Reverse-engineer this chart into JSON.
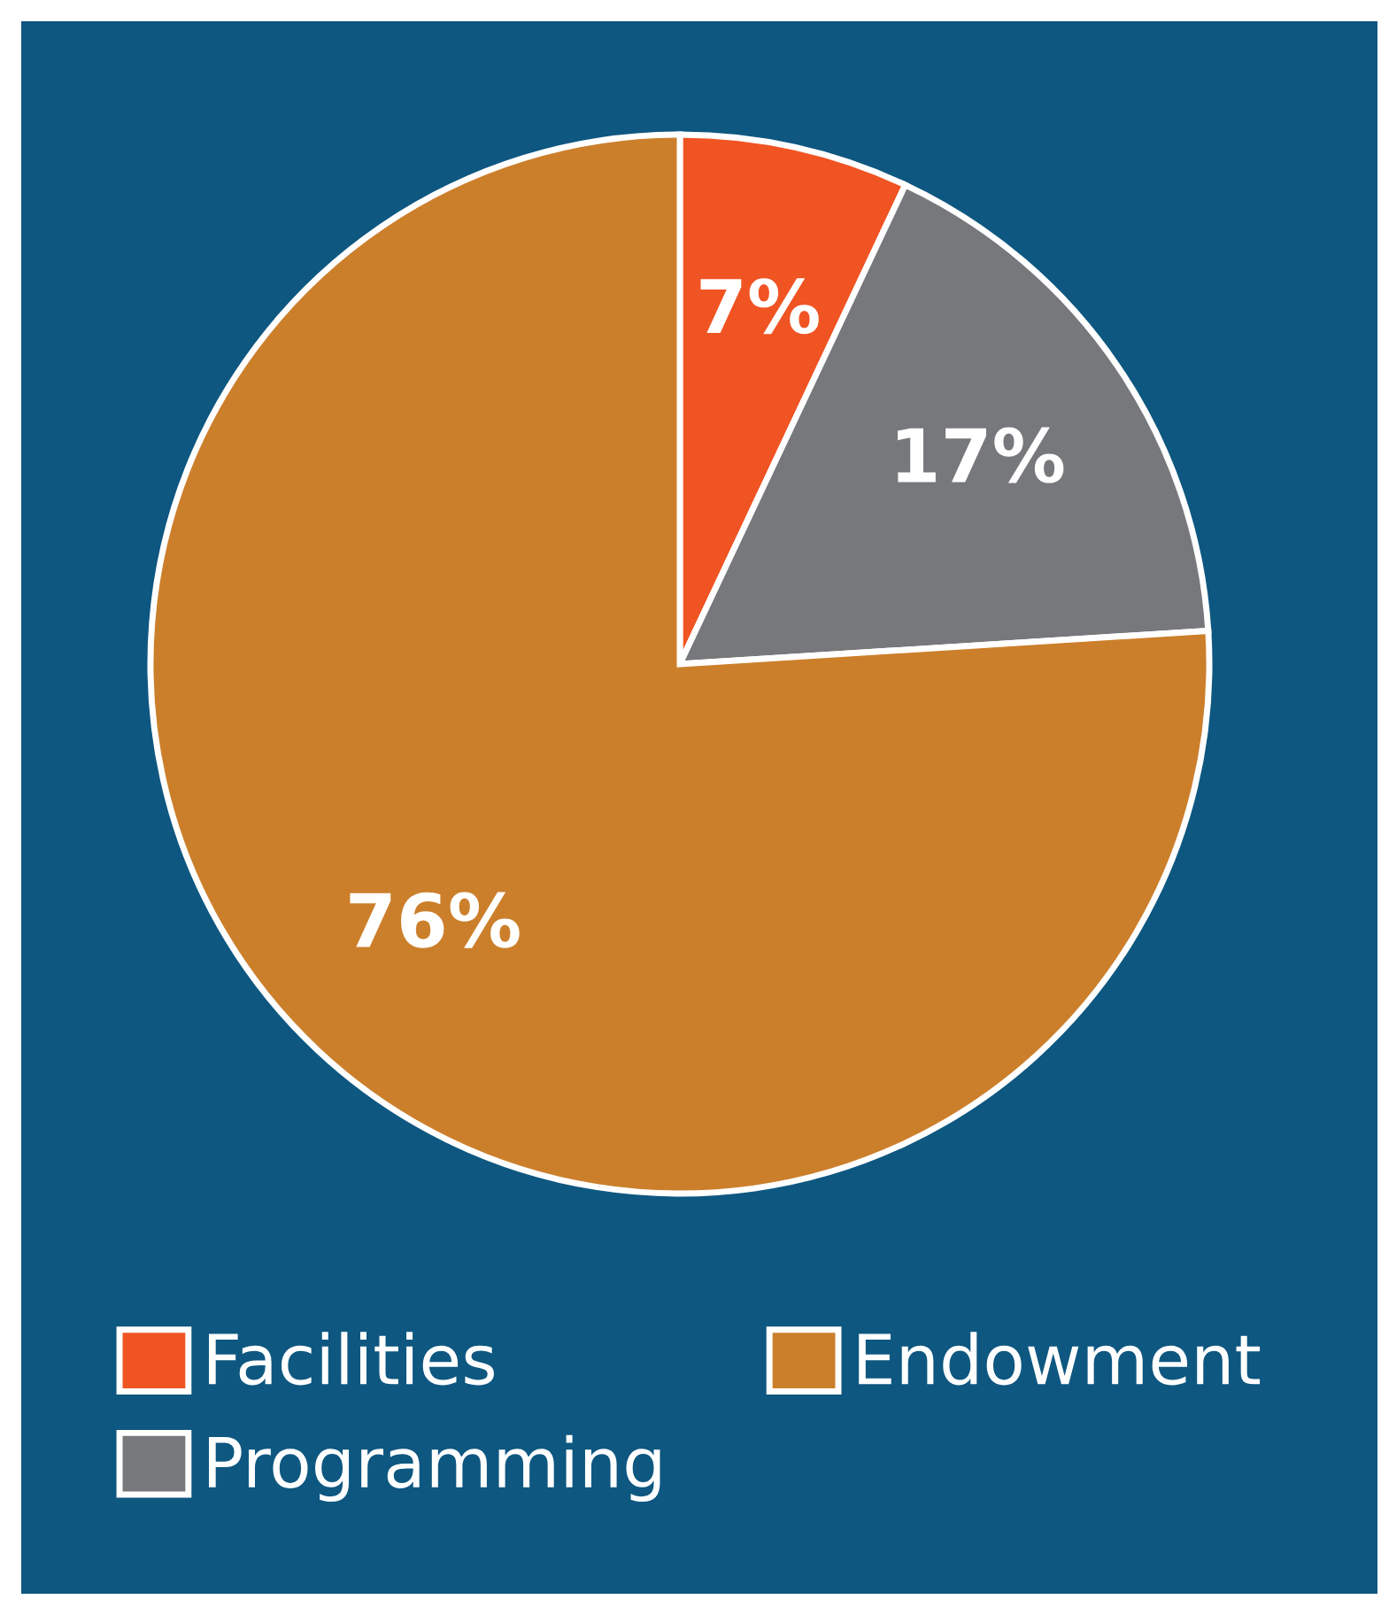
{
  "chart_data": {
    "type": "pie",
    "categories": [
      "Facilities",
      "Programming",
      "Endowment"
    ],
    "values": [
      7,
      17,
      76
    ],
    "value_labels": [
      "7%",
      "17%",
      "76%"
    ],
    "colors": [
      "#f05423",
      "#77787b",
      "#cc7f2b"
    ],
    "legend": "bottom"
  }
}
